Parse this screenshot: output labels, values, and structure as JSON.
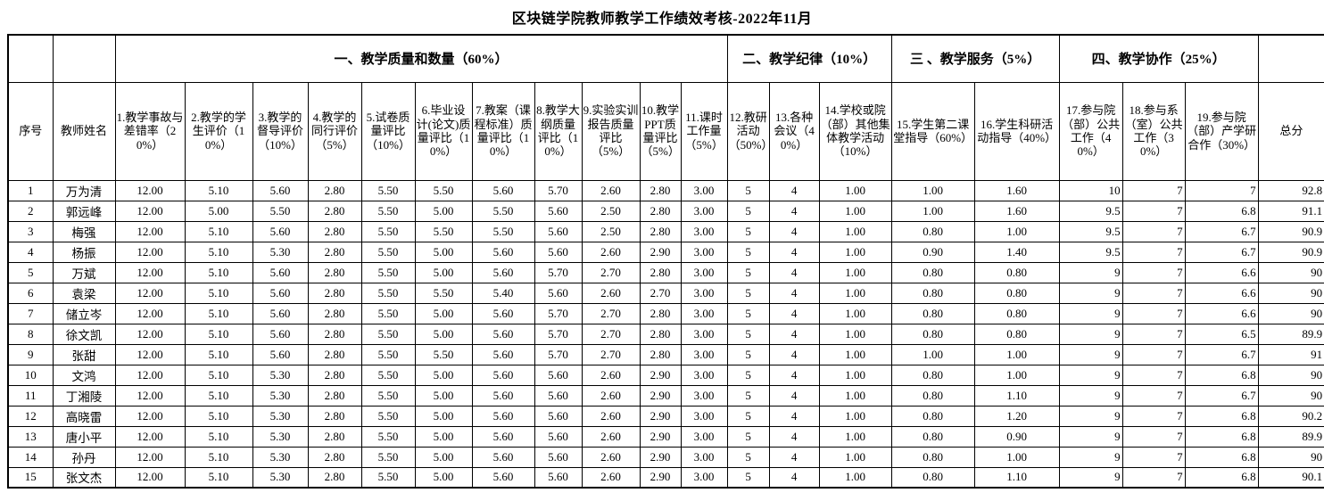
{
  "title": "区块链学院教师教学工作绩效考核-2022年11月",
  "table": {
    "corner": {
      "index": "序号",
      "name": "教师姓名",
      "total": "总分"
    },
    "groups": [
      {
        "label": "一、教学质量和数量（60%）",
        "span": 11
      },
      {
        "label": "二、教学纪律（10%）",
        "span": 3
      },
      {
        "label": "三 、教学服务（5%）",
        "span": 2
      },
      {
        "label": "四、教学协作（25%）",
        "span": 3
      }
    ],
    "columns": [
      "1.教学事故与差错率（20%）",
      "2.教学的学生评价（10%）",
      "3.教学的督导评价（10%）",
      "4.教学的同行评价（5%）",
      "5.试卷质量评比（10%）",
      "6.毕业设计(论文)质量评比（10%）",
      "7.教案（课程标准）质量评比（10%）",
      "8.教学大纲质量评比（10%）",
      "9.实验实训报告质量评比（5%）",
      "10.教学PPT质量评比（5%）",
      "11.课时工作量（5%）",
      "12.教研活动（50%）",
      "13.各种会议（40%）",
      "14.学校或院（部）其他集体教学活动（10%）",
      "15.学生第二课堂指导（60%）",
      "16.学生科研活动指导（40%）",
      "17.参与院（部）公共工作（40%）",
      "18.参与系（室）公共工作（30%）",
      "19.参与院（部）产学研合作（30%）"
    ],
    "rows": [
      {
        "no": "1",
        "name": "万为清",
        "values": [
          "12.00",
          "5.10",
          "5.60",
          "2.80",
          "5.50",
          "5.50",
          "5.60",
          "5.70",
          "2.60",
          "2.80",
          "3.00",
          "5",
          "4",
          "1.00",
          "1.00",
          "1.60",
          "10",
          "7",
          "7",
          "92.8"
        ]
      },
      {
        "no": "2",
        "name": "郭远峰",
        "values": [
          "12.00",
          "5.00",
          "5.50",
          "2.80",
          "5.50",
          "5.00",
          "5.50",
          "5.60",
          "2.50",
          "2.80",
          "3.00",
          "5",
          "4",
          "1.00",
          "1.00",
          "1.60",
          "9.5",
          "7",
          "6.8",
          "91.1"
        ]
      },
      {
        "no": "3",
        "name": "梅强",
        "values": [
          "12.00",
          "5.10",
          "5.60",
          "2.80",
          "5.50",
          "5.50",
          "5.50",
          "5.60",
          "2.50",
          "2.80",
          "3.00",
          "5",
          "4",
          "1.00",
          "0.80",
          "1.00",
          "9.5",
          "7",
          "6.7",
          "90.9"
        ]
      },
      {
        "no": "4",
        "name": "杨振",
        "values": [
          "12.00",
          "5.10",
          "5.30",
          "2.80",
          "5.50",
          "5.00",
          "5.60",
          "5.60",
          "2.60",
          "2.90",
          "3.00",
          "5",
          "4",
          "1.00",
          "0.90",
          "1.40",
          "9.5",
          "7",
          "6.7",
          "90.9"
        ]
      },
      {
        "no": "5",
        "name": "万斌",
        "values": [
          "12.00",
          "5.10",
          "5.60",
          "2.80",
          "5.50",
          "5.00",
          "5.60",
          "5.70",
          "2.70",
          "2.80",
          "3.00",
          "5",
          "4",
          "1.00",
          "0.80",
          "0.80",
          "9",
          "7",
          "6.6",
          "90"
        ]
      },
      {
        "no": "6",
        "name": "袁梁",
        "values": [
          "12.00",
          "5.10",
          "5.60",
          "2.80",
          "5.50",
          "5.50",
          "5.40",
          "5.60",
          "2.60",
          "2.70",
          "3.00",
          "5",
          "4",
          "1.00",
          "0.80",
          "0.80",
          "9",
          "7",
          "6.6",
          "90"
        ]
      },
      {
        "no": "7",
        "name": "储立岑",
        "values": [
          "12.00",
          "5.10",
          "5.60",
          "2.80",
          "5.50",
          "5.00",
          "5.60",
          "5.70",
          "2.70",
          "2.80",
          "3.00",
          "5",
          "4",
          "1.00",
          "0.80",
          "0.80",
          "9",
          "7",
          "6.6",
          "90"
        ]
      },
      {
        "no": "8",
        "name": "徐文凯",
        "values": [
          "12.00",
          "5.10",
          "5.60",
          "2.80",
          "5.50",
          "5.00",
          "5.60",
          "5.70",
          "2.70",
          "2.80",
          "3.00",
          "5",
          "4",
          "1.00",
          "0.80",
          "0.80",
          "9",
          "7",
          "6.5",
          "89.9"
        ]
      },
      {
        "no": "9",
        "name": "张甜",
        "values": [
          "12.00",
          "5.10",
          "5.60",
          "2.80",
          "5.50",
          "5.50",
          "5.60",
          "5.70",
          "2.70",
          "2.80",
          "3.00",
          "5",
          "4",
          "1.00",
          "1.00",
          "1.00",
          "9",
          "7",
          "6.7",
          "91"
        ]
      },
      {
        "no": "10",
        "name": "文鸿",
        "values": [
          "12.00",
          "5.10",
          "5.30",
          "2.80",
          "5.50",
          "5.00",
          "5.60",
          "5.60",
          "2.60",
          "2.90",
          "3.00",
          "5",
          "4",
          "1.00",
          "0.80",
          "1.00",
          "9",
          "7",
          "6.8",
          "90"
        ]
      },
      {
        "no": "11",
        "name": "丁湘陵",
        "values": [
          "12.00",
          "5.10",
          "5.30",
          "2.80",
          "5.50",
          "5.00",
          "5.60",
          "5.60",
          "2.60",
          "2.90",
          "3.00",
          "5",
          "4",
          "1.00",
          "0.80",
          "1.10",
          "9",
          "7",
          "6.7",
          "90"
        ]
      },
      {
        "no": "12",
        "name": "高晓雷",
        "values": [
          "12.00",
          "5.10",
          "5.30",
          "2.80",
          "5.50",
          "5.00",
          "5.60",
          "5.60",
          "2.60",
          "2.90",
          "3.00",
          "5",
          "4",
          "1.00",
          "0.80",
          "1.20",
          "9",
          "7",
          "6.8",
          "90.2"
        ]
      },
      {
        "no": "13",
        "name": "唐小平",
        "values": [
          "12.00",
          "5.10",
          "5.30",
          "2.80",
          "5.50",
          "5.00",
          "5.60",
          "5.60",
          "2.60",
          "2.90",
          "3.00",
          "5",
          "4",
          "1.00",
          "0.80",
          "0.90",
          "9",
          "7",
          "6.8",
          "89.9"
        ]
      },
      {
        "no": "14",
        "name": "孙丹",
        "values": [
          "12.00",
          "5.10",
          "5.30",
          "2.80",
          "5.50",
          "5.00",
          "5.60",
          "5.60",
          "2.60",
          "2.90",
          "3.00",
          "5",
          "4",
          "1.00",
          "0.80",
          "1.00",
          "9",
          "7",
          "6.8",
          "90"
        ]
      },
      {
        "no": "15",
        "name": "张文杰",
        "values": [
          "12.00",
          "5.10",
          "5.30",
          "2.80",
          "5.50",
          "5.00",
          "5.60",
          "5.60",
          "2.60",
          "2.90",
          "3.00",
          "5",
          "4",
          "1.00",
          "0.80",
          "1.10",
          "9",
          "7",
          "6.8",
          "90.1"
        ]
      }
    ]
  }
}
